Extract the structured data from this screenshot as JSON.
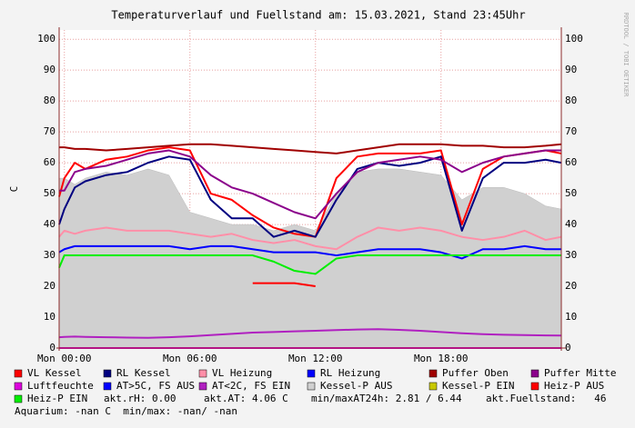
{
  "chart_data": {
    "type": "line",
    "title": "Temperaturverlauf und Fuellstand am: 15.03.2021, Stand 23:45Uhr",
    "y_label": "C",
    "watermark": "RRDTOOL / TOBI OETIKER",
    "x": [
      -0.25,
      0,
      0.5,
      1,
      2,
      3,
      4,
      5,
      6,
      7,
      8,
      9,
      10,
      11,
      12,
      13,
      14,
      15,
      16,
      17,
      18,
      19,
      20,
      21,
      22,
      23,
      23.75
    ],
    "xlim": [
      -0.25,
      23.75
    ],
    "xticks": [
      {
        "value": 0,
        "label": "Mon 00:00"
      },
      {
        "value": 6,
        "label": "Mon 06:00"
      },
      {
        "value": 12,
        "label": "Mon 12:00"
      },
      {
        "value": 18,
        "label": "Mon 18:00"
      }
    ],
    "ylim": [
      0,
      103
    ],
    "yticks": [
      0,
      10,
      20,
      30,
      40,
      50,
      60,
      70,
      80,
      90,
      100
    ],
    "grid": true,
    "series": [
      {
        "name": "VL Kessel",
        "color": "#ff0000",
        "values": [
          49,
          55,
          60,
          58,
          61,
          62,
          64,
          65,
          64,
          50,
          48,
          43,
          39,
          37,
          36,
          55,
          62,
          63,
          63,
          63,
          64,
          40,
          58,
          62,
          63,
          64,
          63
        ]
      },
      {
        "name": "RL Kessel",
        "color": "#000080",
        "values": [
          40,
          45,
          52,
          54,
          56,
          57,
          60,
          62,
          61,
          48,
          42,
          42,
          36,
          38,
          36,
          48,
          58,
          60,
          59,
          60,
          62,
          38,
          55,
          60,
          60,
          61,
          60
        ]
      },
      {
        "name": "VL Heizung",
        "color": "#ff8fa8",
        "values": [
          36,
          38,
          37,
          38,
          39,
          38,
          38,
          38,
          37,
          36,
          37,
          35,
          34,
          35,
          33,
          32,
          36,
          39,
          38,
          39,
          38,
          36,
          35,
          36,
          38,
          35,
          36
        ]
      },
      {
        "name": "RL Heizung",
        "color": "#0000ff",
        "values": [
          31,
          32,
          33,
          33,
          33,
          33,
          33,
          33,
          32,
          33,
          33,
          32,
          31,
          31,
          31,
          30,
          31,
          32,
          32,
          32,
          31,
          29,
          32,
          32,
          33,
          32,
          32
        ]
      },
      {
        "name": "Puffer Oben",
        "color": "#a00000",
        "values": [
          65,
          65,
          64.5,
          64.5,
          64,
          64.5,
          65,
          65.5,
          66,
          66,
          65.5,
          65,
          64.5,
          64,
          63.5,
          63,
          64,
          65,
          66,
          66,
          66,
          65.5,
          65.5,
          65,
          65,
          65.5,
          66
        ]
      },
      {
        "name": "Puffer Mitte",
        "color": "#8b008b",
        "values": [
          51,
          51,
          57,
          58,
          59,
          61,
          63,
          64,
          62,
          56,
          52,
          50,
          47,
          44,
          42,
          50,
          57,
          60,
          61,
          62,
          61,
          57,
          60,
          62,
          63,
          64,
          64
        ]
      },
      {
        "name": "Luftfeuchte",
        "color": "#dd00dd",
        "values": [
          0,
          0,
          0,
          0,
          0,
          0,
          0,
          0,
          0,
          0,
          0,
          0,
          0,
          0,
          0,
          0,
          0,
          0,
          0,
          0,
          0,
          0,
          0,
          0,
          0,
          0,
          0
        ]
      },
      {
        "name": "AT>5C, FS AUS",
        "color": "#0000ff",
        "values": [
          null,
          null,
          null,
          null,
          null,
          null,
          null,
          null,
          null,
          null,
          null,
          null,
          null,
          null,
          null,
          null,
          null,
          null,
          null,
          null,
          null,
          null,
          null,
          null,
          null,
          null,
          null
        ]
      },
      {
        "name": "AT<2C, FS EIN",
        "color": "#b020c0",
        "values": [
          3.5,
          3.6,
          3.7,
          3.6,
          3.5,
          3.4,
          3.3,
          3.5,
          3.8,
          4.2,
          4.6,
          5.0,
          5.2,
          5.4,
          5.6,
          5.8,
          6.0,
          6.1,
          5.9,
          5.6,
          5.2,
          4.8,
          4.5,
          4.3,
          4.2,
          4.1,
          4.06
        ]
      },
      {
        "name": "Kessel-P AUS",
        "color": "#d0d0d0",
        "style": "area",
        "values": [
          55,
          55,
          53,
          55,
          57,
          56,
          58,
          56,
          44,
          42,
          40,
          40,
          38,
          40,
          38,
          50,
          57,
          58,
          58,
          57,
          56,
          48,
          52,
          52,
          50,
          46,
          45
        ]
      },
      {
        "name": "Kessel-P EIN",
        "color": "#c8c800",
        "values": [
          null,
          null,
          null,
          null,
          null,
          null,
          null,
          null,
          null,
          null,
          null,
          null,
          null,
          null,
          null,
          null,
          null,
          null,
          null,
          null,
          null,
          null,
          null,
          null,
          null,
          null,
          null
        ]
      },
      {
        "name": "Heiz-P AUS",
        "color": "#ff0000",
        "values": [
          null,
          null,
          null,
          null,
          null,
          null,
          null,
          null,
          null,
          null,
          null,
          21,
          21,
          21,
          20,
          null,
          null,
          null,
          null,
          null,
          null,
          null,
          null,
          null,
          null,
          null,
          null
        ]
      },
      {
        "name": "Heiz-P EIN",
        "color": "#00ee00",
        "values": [
          26,
          30,
          30,
          30,
          30,
          30,
          30,
          30,
          30,
          30,
          30,
          30,
          28,
          25,
          24,
          29,
          30,
          30,
          30,
          30,
          30,
          30,
          30,
          30,
          30,
          30,
          30
        ]
      }
    ],
    "status": [
      "akt.rH: 0.00",
      "akt.AT: 4.06 C",
      "min/maxAT24h: 2.81 / 6.44",
      "akt.Fuellstand:   46"
    ],
    "footer": "Aquarium: -nan C  min/max: -nan/ -nan"
  }
}
